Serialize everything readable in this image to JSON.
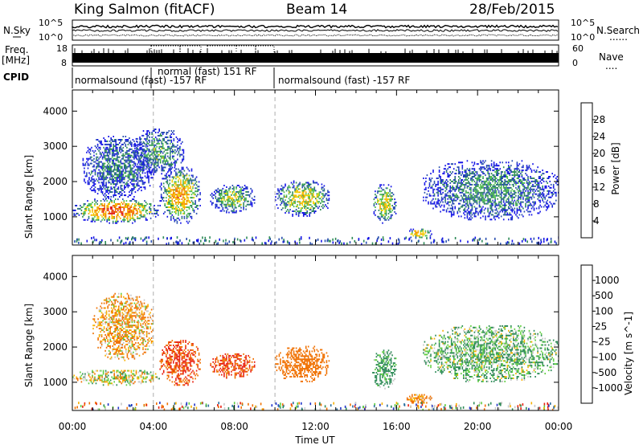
{
  "header": {
    "station": "King Salmon (fitACF)",
    "beam": "Beam 14",
    "date": "28/Feb/2015"
  },
  "left_labels": {
    "nsky": "N.Sky",
    "freq": "Freq.",
    "freq_unit": "[MHz]",
    "cpid": "CPID"
  },
  "right_labels": {
    "nsearch": "N.Search",
    "nave": "Nave",
    "dots": "......",
    "dots2": "...."
  },
  "nsky_axis": {
    "top": "10^5",
    "bottom": "10^0"
  },
  "nsearch_axis": {
    "top": "10^5",
    "bottom": "10^0"
  },
  "freq_axis": {
    "top": "18",
    "bottom": "8"
  },
  "nave_axis": {
    "top": "60",
    "bottom": "0"
  },
  "cpid_labels": [
    "normalsound (fast) -157 RF",
    "normal (fast) 151 RF",
    "normalsound (fast) -157 RF"
  ],
  "time_ticks": [
    "00:00",
    "04:00",
    "08:00",
    "12:00",
    "16:00",
    "20:00",
    "00:00"
  ],
  "x_title": "Time UT",
  "chart_data": [
    {
      "type": "heatmap",
      "quantity": "Power",
      "ylabel": "Slant Range [km]",
      "y_ticks": [
        "1000",
        "2000",
        "3000",
        "4000"
      ],
      "ylim": [
        200,
        4600
      ],
      "xlim_hours": [
        0,
        24
      ],
      "colorbar_label": "Power [dB]",
      "colorbar_ticks": [
        "4",
        "8",
        "12",
        "16",
        "20",
        "24",
        "28"
      ],
      "colorbar_colors": [
        "#1414e6",
        "#2a4fb0",
        "#2e8b57",
        "#4fbf4f",
        "#f2d000",
        "#f7a800",
        "#f07000",
        "#e02020"
      ],
      "echo_regions": [
        {
          "t0": 0.0,
          "t1": 4.3,
          "r0": 800,
          "r1": 1500,
          "level": 0.8
        },
        {
          "t0": 0.5,
          "t1": 4.0,
          "r0": 1500,
          "r1": 3300,
          "level": 0.25
        },
        {
          "t0": 4.3,
          "t1": 6.3,
          "r0": 800,
          "r1": 2400,
          "level": 0.65
        },
        {
          "t0": 3.0,
          "t1": 5.5,
          "r0": 2200,
          "r1": 3500,
          "level": 0.35
        },
        {
          "t0": 6.8,
          "t1": 9.0,
          "r0": 1100,
          "r1": 1900,
          "level": 0.45
        },
        {
          "t0": 10.0,
          "t1": 12.7,
          "r0": 1000,
          "r1": 2000,
          "level": 0.55
        },
        {
          "t0": 14.8,
          "t1": 16.0,
          "r0": 800,
          "r1": 1900,
          "level": 0.55
        },
        {
          "t0": 16.5,
          "t1": 17.7,
          "r0": 350,
          "r1": 650,
          "level": 0.7
        },
        {
          "t0": 17.3,
          "t1": 24.0,
          "r0": 900,
          "r1": 2600,
          "level": 0.3
        }
      ]
    },
    {
      "type": "heatmap",
      "quantity": "Velocity",
      "ylabel": "Slant Range [km]",
      "y_ticks": [
        "1000",
        "2000",
        "3000",
        "4000"
      ],
      "ylim": [
        200,
        4600
      ],
      "xlim_hours": [
        0,
        24
      ],
      "colorbar_label": "Velocity [m s^-1]",
      "colorbar_ticks": [
        "1000",
        "500",
        "100",
        "25",
        "-25",
        "-100",
        "-500",
        "-1000"
      ],
      "colorbar_colors": [
        "#1e32c8",
        "#2a6fa0",
        "#2e8b57",
        "#5fcf3f",
        "#c8c8c8",
        "#f7b000",
        "#f07000",
        "#e82010"
      ],
      "echo_regions": [
        {
          "t0": 0.0,
          "t1": 4.3,
          "r0": 900,
          "r1": 1350,
          "vel": 0
        },
        {
          "t0": 1.0,
          "t1": 4.0,
          "r0": 1600,
          "r1": 3500,
          "vel": -100
        },
        {
          "t0": 4.3,
          "t1": 6.3,
          "r0": 900,
          "r1": 2200,
          "vel": -500
        },
        {
          "t0": 6.8,
          "t1": 9.0,
          "r0": 1100,
          "r1": 1800,
          "vel": -500
        },
        {
          "t0": 10.0,
          "t1": 12.7,
          "r0": 1000,
          "r1": 2000,
          "vel": -300
        },
        {
          "t0": 14.8,
          "t1": 16.0,
          "r0": 800,
          "r1": 1900,
          "vel": 150
        },
        {
          "t0": 16.5,
          "t1": 17.7,
          "r0": 350,
          "r1": 650,
          "vel": -150
        },
        {
          "t0": 17.3,
          "t1": 24.0,
          "r0": 1000,
          "r1": 2600,
          "vel": 100
        }
      ]
    }
  ]
}
